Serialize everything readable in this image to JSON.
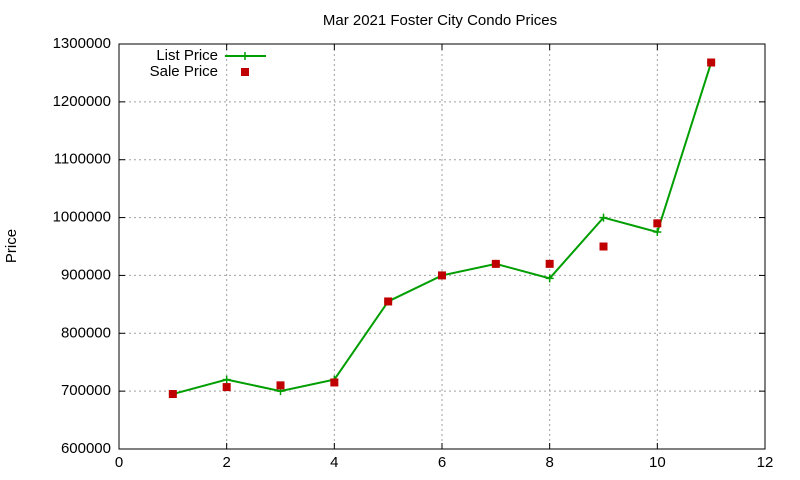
{
  "chart_data": {
    "type": "line",
    "title": "Mar 2021 Foster City Condo Prices",
    "ylabel": "Price",
    "x": [
      1,
      2,
      3,
      4,
      5,
      6,
      7,
      8,
      9,
      10,
      11
    ],
    "series": [
      {
        "name": "List Price",
        "color": "#009e00",
        "style": "linespoints",
        "marker": "plus",
        "values": [
          695000,
          720000,
          700000,
          720000,
          855000,
          900000,
          920000,
          895000,
          1000000,
          975000,
          1268000
        ]
      },
      {
        "name": "Sale Price",
        "color": "#c00000",
        "style": "points",
        "marker": "square",
        "values": [
          695000,
          707000,
          710000,
          715000,
          855000,
          900000,
          920000,
          920000,
          950000,
          990000,
          1268000
        ]
      }
    ],
    "xlim": [
      0,
      12
    ],
    "xticks": [
      0,
      2,
      4,
      6,
      8,
      10,
      12
    ],
    "ylim": [
      600000,
      1300000
    ],
    "yticks": [
      600000,
      700000,
      800000,
      900000,
      1000000,
      1100000,
      1200000,
      1300000
    ],
    "grid": true,
    "legend": "top-left"
  }
}
